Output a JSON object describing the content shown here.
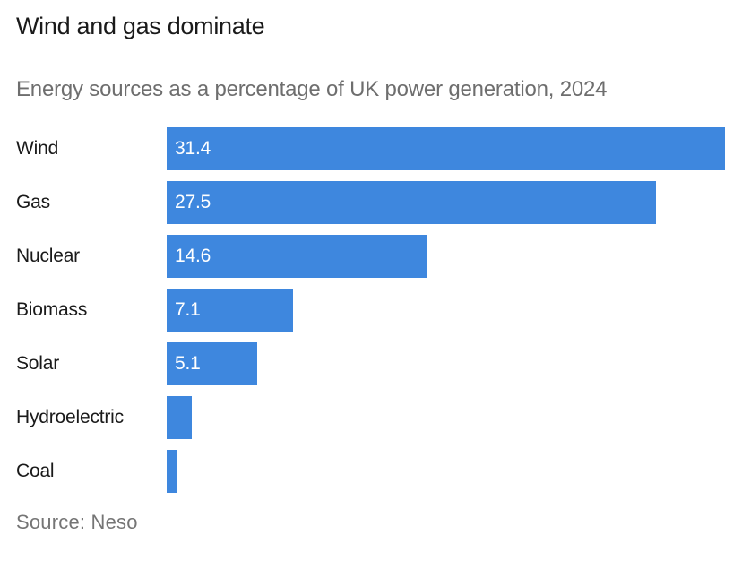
{
  "chart_data": {
    "type": "bar",
    "orientation": "horizontal",
    "title": "Wind and gas dominate",
    "subtitle": "Energy sources as a percentage of UK power generation, 2024",
    "source": "Source: Neso",
    "categories": [
      "Wind",
      "Gas",
      "Nuclear",
      "Biomass",
      "Solar",
      "Hydroelectric",
      "Coal"
    ],
    "values": [
      31.4,
      27.5,
      14.6,
      7.1,
      5.1,
      1.4,
      0.6
    ],
    "value_labels": [
      "31.4",
      "27.5",
      "14.6",
      "7.1",
      "5.1",
      "",
      ""
    ],
    "xlim": [
      0,
      31.4
    ],
    "grid": false,
    "legend": "none",
    "bar_color": "#3E87DE",
    "title_color": "#1a1a1a",
    "subtitle_color": "#6e6e6e",
    "source_color": "#757575",
    "value_label_color": "#ffffff"
  }
}
